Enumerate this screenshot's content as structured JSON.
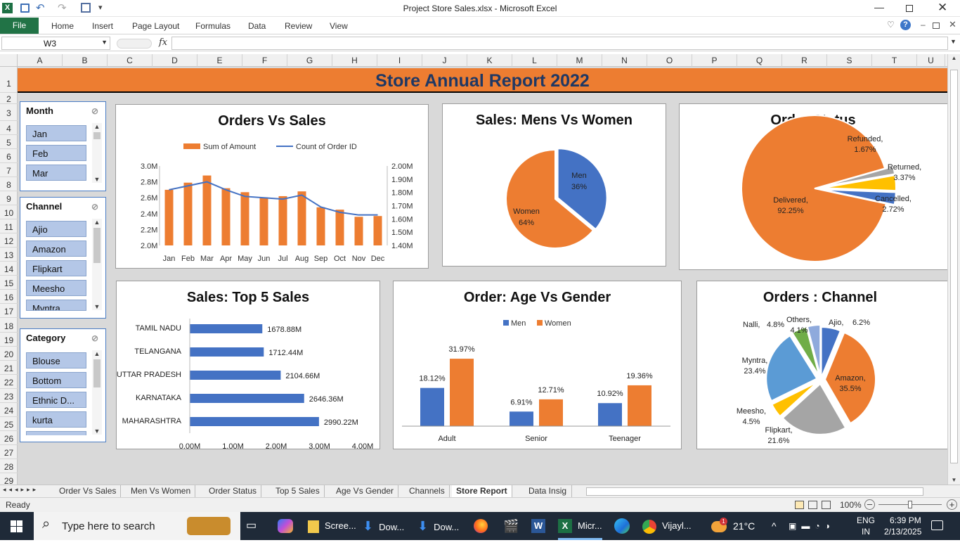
{
  "window": {
    "title": "Project Store Sales.xlsx  -  Microsoft Excel"
  },
  "ribbon": {
    "file": "File",
    "tabs": [
      "Home",
      "Insert",
      "Page Layout",
      "Formulas",
      "Data",
      "Review",
      "View"
    ]
  },
  "formula": {
    "name_box": "W3",
    "fx": "fx",
    "value": ""
  },
  "columns": [
    "A",
    "B",
    "C",
    "D",
    "E",
    "F",
    "G",
    "H",
    "I",
    "J",
    "K",
    "L",
    "M",
    "N",
    "O",
    "P",
    "Q",
    "R",
    "S",
    "T",
    "U"
  ],
  "rows": [
    "1",
    "2",
    "3",
    "4",
    "5",
    "6",
    "7",
    "8",
    "9",
    "10",
    "11",
    "12",
    "13",
    "14",
    "15",
    "16",
    "17",
    "18",
    "19",
    "20",
    "21",
    "22",
    "23",
    "24",
    "25",
    "26",
    "27",
    "28",
    "29"
  ],
  "report": {
    "title": "Store Annual Report 2022"
  },
  "slicers": [
    {
      "title": "Month",
      "items": [
        "Jan",
        "Feb",
        "Mar"
      ]
    },
    {
      "title": "Channel",
      "items": [
        "Ajio",
        "Amazon",
        "Flipkart",
        "Meesho",
        "Myntra"
      ]
    },
    {
      "title": "Category",
      "items": [
        "Blouse",
        "Bottom",
        "Ethnic D...",
        "kurta"
      ]
    }
  ],
  "chart_data": [
    {
      "type": "bar",
      "title": "Orders Vs Sales",
      "categories": [
        "Jan",
        "Feb",
        "Mar",
        "Apr",
        "May",
        "Jun",
        "Jul",
        "Aug",
        "Sep",
        "Oct",
        "Nov",
        "Dec"
      ],
      "series": [
        {
          "name": "Sum of Amount",
          "axis": "left",
          "values": [
            2.7,
            2.79,
            2.88,
            2.72,
            2.67,
            2.6,
            2.62,
            2.68,
            2.48,
            2.45,
            2.36,
            2.37
          ]
        },
        {
          "name": "Count of Order ID",
          "type": "line",
          "axis": "right",
          "values": [
            1.82,
            1.85,
            1.88,
            1.82,
            1.77,
            1.76,
            1.75,
            1.78,
            1.69,
            1.65,
            1.63,
            1.63
          ]
        }
      ],
      "y_left": {
        "ticks": [
          "3.0M",
          "2.8M",
          "2.6M",
          "2.4M",
          "2.2M",
          "2.0M"
        ],
        "ylim": [
          2.0,
          3.0
        ]
      },
      "y_right": {
        "ticks": [
          "2.00M",
          "1.90M",
          "1.80M",
          "1.70M",
          "1.60M",
          "1.50M",
          "1.40M"
        ],
        "ylim": [
          1.4,
          2.0
        ]
      },
      "colors": [
        "#ed7d31",
        "#4472c4"
      ]
    },
    {
      "type": "pie",
      "title": "Sales: Mens Vs Women",
      "labels": [
        "Men",
        "Women"
      ],
      "values": [
        36,
        64
      ],
      "data_labels": [
        "36%",
        "64%"
      ],
      "colors": [
        "#4472c4",
        "#ed7d31"
      ]
    },
    {
      "type": "pie",
      "title": "Order Status",
      "labels": [
        "Delivered,",
        "Refunded,",
        "Returned,",
        "Cancelled,"
      ],
      "values": [
        92.25,
        1.67,
        3.37,
        2.72
      ],
      "data_labels": [
        "92.25%",
        "1.67%",
        "3.37%",
        "2.72%"
      ],
      "colors": [
        "#ed7d31",
        "#a5a5a5",
        "#ffc000",
        "#4472c4"
      ]
    },
    {
      "type": "bar",
      "orientation": "horizontal",
      "title": "Sales: Top 5 Sales",
      "categories": [
        "TAMIL NADU",
        "TELANGANA",
        "UTTAR PRADESH",
        "KARNATAKA",
        "MAHARASHTRA"
      ],
      "values": [
        1678.88,
        1712.44,
        2104.66,
        2646.36,
        2990.22
      ],
      "data_labels": [
        "1678.88M",
        "1712.44M",
        "2104.66M",
        "2646.36M",
        "2990.22M"
      ],
      "x_ticks": [
        "0.00M",
        "1.00M",
        "2.00M",
        "3.00M",
        "4.00M"
      ],
      "xlim": [
        0,
        4000
      ],
      "color": "#4472c4"
    },
    {
      "type": "bar",
      "title": "Order: Age Vs Gender",
      "categories": [
        "Adult",
        "Senior",
        "Teenager"
      ],
      "series": [
        {
          "name": "Men",
          "values": [
            18.12,
            6.91,
            10.92
          ],
          "data_labels": [
            "18.12%",
            "6.91%",
            "10.92%"
          ]
        },
        {
          "name": "Women",
          "values": [
            31.97,
            12.71,
            19.36
          ],
          "data_labels": [
            "31.97%",
            "12.71%",
            "19.36%"
          ]
        }
      ],
      "colors": [
        "#4472c4",
        "#ed7d31"
      ]
    },
    {
      "type": "pie",
      "title": "Orders : Channel",
      "labels": [
        "Ajio,",
        "Amazon,",
        "Flipkart,",
        "Meesho,",
        "Myntra,",
        "Nalli,",
        "Others,"
      ],
      "values": [
        6.2,
        35.5,
        21.6,
        4.5,
        23.4,
        4.8,
        4.1
      ],
      "data_labels": [
        "6.2%",
        "35.5%",
        "21.6%",
        "4.5%",
        "23.4%",
        "4.8%",
        "4.1%"
      ],
      "colors": [
        "#4472c4",
        "#ed7d31",
        "#a5a5a5",
        "#ffc000",
        "#5b9bd5",
        "#70ad47",
        "#8faadc"
      ]
    }
  ],
  "tabs": [
    "Order Vs Sales",
    "Men Vs Women",
    "Order Status",
    "Top 5 Sales",
    "Age Vs Gender",
    "Channels",
    "Store Report",
    "Data Insig"
  ],
  "active_tab": "Store Report",
  "status": {
    "ready": "Ready",
    "zoom": "100%"
  },
  "taskbar": {
    "search": "Type here to search",
    "apps": [
      "Scree...",
      "Dow...",
      "Dow...",
      "Micr...",
      "Vijayl..."
    ],
    "temp": "21°C",
    "lang1": "ENG",
    "lang2": "IN",
    "time": "6:39 PM",
    "date": "2/13/2025",
    "notif": "1"
  }
}
